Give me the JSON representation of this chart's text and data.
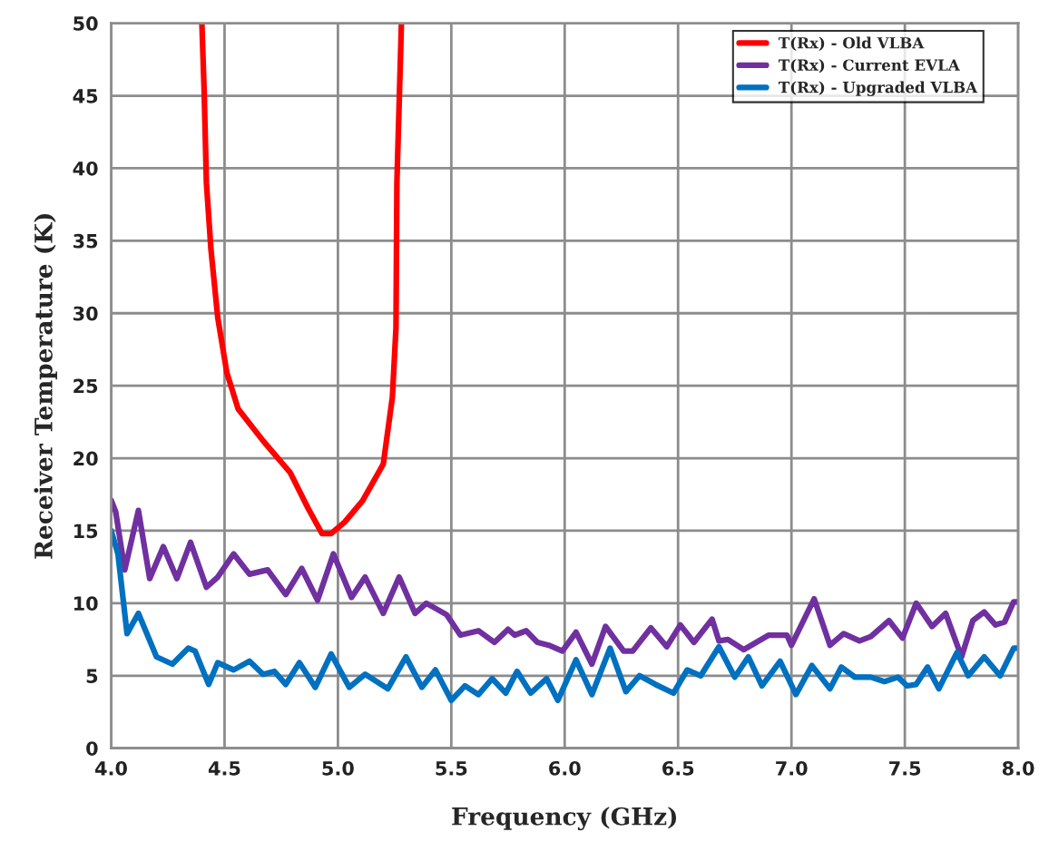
{
  "chart_data": {
    "type": "line",
    "xlabel": "Frequency (GHz)",
    "ylabel": "Receiver Temperature (K)",
    "xlim": [
      4.0,
      8.0
    ],
    "ylim": [
      0,
      50
    ],
    "xticks": [
      {
        "value": 4.0,
        "label": "4.0"
      },
      {
        "value": 4.5,
        "label": "4.5"
      },
      {
        "value": 5.0,
        "label": "5.0"
      },
      {
        "value": 5.5,
        "label": "5.5"
      },
      {
        "value": 6.0,
        "label": "6.0"
      },
      {
        "value": 6.5,
        "label": "6.5"
      },
      {
        "value": 7.0,
        "label": "7.0"
      },
      {
        "value": 7.5,
        "label": "7.5"
      },
      {
        "value": 8.0,
        "label": "8.0"
      }
    ],
    "yticks": [
      0,
      5,
      10,
      15,
      20,
      25,
      30,
      35,
      40,
      45,
      50
    ],
    "grid": true,
    "legend": "top right",
    "line_style": "solid",
    "series": [
      {
        "name": "T(Rx) - Old VLBA",
        "color": "#ff0000",
        "x": [
          4.4,
          4.41,
          4.42,
          4.44,
          4.47,
          4.51,
          4.56,
          4.67,
          4.79,
          4.87,
          4.93,
          4.97,
          5.03,
          5.11,
          5.2,
          5.24,
          5.256,
          5.26,
          5.28
        ],
        "values": [
          50,
          45.3,
          39,
          34.4,
          29.7,
          25.9,
          23.4,
          21.2,
          19,
          16.5,
          14.8,
          14.8,
          15.6,
          17.1,
          19.6,
          24.2,
          29,
          39,
          50
        ]
      },
      {
        "name": "T(Rx) - Current EVLA",
        "color": "#7030a0",
        "x": [
          4.0,
          4.02,
          4.06,
          4.12,
          4.17,
          4.23,
          4.29,
          4.35,
          4.42,
          4.47,
          4.54,
          4.61,
          4.69,
          4.77,
          4.84,
          4.91,
          4.98,
          5.06,
          5.12,
          5.2,
          5.27,
          5.34,
          5.39,
          5.48,
          5.54,
          5.62,
          5.69,
          5.75,
          5.78,
          5.83,
          5.88,
          5.93,
          5.99,
          6.05,
          6.12,
          6.18,
          6.26,
          6.3,
          6.38,
          6.45,
          6.51,
          6.57,
          6.65,
          6.68,
          6.72,
          6.79,
          6.9,
          6.98,
          7.0,
          7.1,
          7.17,
          7.23,
          7.3,
          7.35,
          7.43,
          7.49,
          7.55,
          7.62,
          7.68,
          7.75,
          7.8,
          7.85,
          7.9,
          7.94,
          7.98,
          8.0
        ],
        "values": [
          17.1,
          16.3,
          12.3,
          16.4,
          11.7,
          13.9,
          11.7,
          14.2,
          11.1,
          11.8,
          13.4,
          12.0,
          12.3,
          10.6,
          12.4,
          10.2,
          13.4,
          10.4,
          11.8,
          9.3,
          11.8,
          9.3,
          10.0,
          9.2,
          7.8,
          8.1,
          7.3,
          8.2,
          7.8,
          8.1,
          7.3,
          7.1,
          6.7,
          8.0,
          5.8,
          8.4,
          6.7,
          6.7,
          8.3,
          7.0,
          8.5,
          7.3,
          8.9,
          7.4,
          7.5,
          6.8,
          7.8,
          7.8,
          7.1,
          10.3,
          7.1,
          7.9,
          7.4,
          7.7,
          8.8,
          7.6,
          10.0,
          8.4,
          9.3,
          6.3,
          8.8,
          9.4,
          8.5,
          8.7,
          10.1,
          10.1
        ]
      },
      {
        "name": "T(Rx) - Upgraded VLBA",
        "color": "#0070c0",
        "x": [
          4.0,
          4.03,
          4.07,
          4.12,
          4.2,
          4.27,
          4.34,
          4.37,
          4.43,
          4.47,
          4.54,
          4.61,
          4.67,
          4.72,
          4.77,
          4.83,
          4.9,
          4.97,
          5.05,
          5.12,
          5.22,
          5.3,
          5.37,
          5.43,
          5.5,
          5.56,
          5.62,
          5.68,
          5.74,
          5.79,
          5.85,
          5.92,
          5.97,
          6.05,
          6.12,
          6.2,
          6.27,
          6.33,
          6.4,
          6.48,
          6.54,
          6.6,
          6.68,
          6.75,
          6.81,
          6.87,
          6.95,
          7.02,
          7.09,
          7.17,
          7.22,
          7.28,
          7.35,
          7.41,
          7.47,
          7.51,
          7.55,
          7.6,
          7.65,
          7.73,
          7.78,
          7.85,
          7.92,
          7.98,
          8.0
        ],
        "values": [
          15.0,
          13.4,
          7.9,
          9.3,
          6.3,
          5.8,
          6.9,
          6.7,
          4.4,
          5.9,
          5.4,
          6.0,
          5.1,
          5.3,
          4.4,
          5.9,
          4.2,
          6.5,
          4.2,
          5.1,
          4.1,
          6.3,
          4.2,
          5.4,
          3.3,
          4.3,
          3.7,
          4.8,
          3.8,
          5.3,
          3.8,
          4.8,
          3.3,
          6.1,
          3.7,
          6.9,
          3.9,
          5.0,
          4.4,
          3.8,
          5.4,
          5.0,
          7.0,
          4.9,
          6.3,
          4.3,
          6.0,
          3.7,
          5.7,
          4.1,
          5.6,
          4.9,
          4.9,
          4.6,
          4.9,
          4.3,
          4.4,
          5.6,
          4.1,
          6.6,
          5.0,
          6.3,
          5.0,
          6.9,
          6.9
        ]
      }
    ]
  }
}
